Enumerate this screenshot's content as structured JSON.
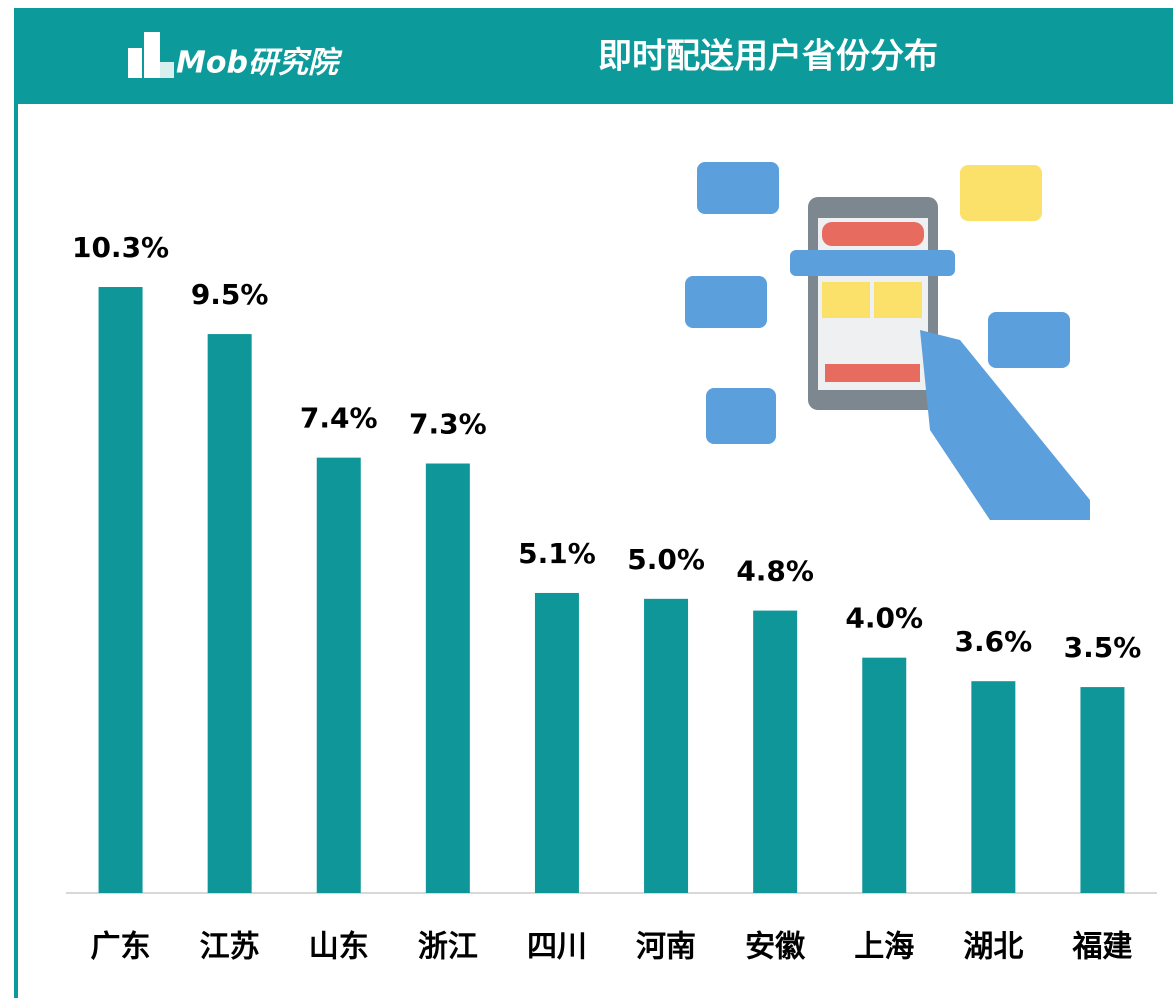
{
  "brand": "Mob研究院",
  "chart_data": {
    "type": "bar",
    "title": "即时配送用户省份分布",
    "categories": [
      "广东",
      "江苏",
      "山东",
      "浙江",
      "四川",
      "河南",
      "安徽",
      "上海",
      "湖北",
      "福建"
    ],
    "values": [
      10.3,
      9.5,
      7.4,
      7.3,
      5.1,
      5.0,
      4.8,
      4.0,
      3.6,
      3.5
    ],
    "value_labels": [
      "10.3%",
      "9.5%",
      "7.4%",
      "7.3%",
      "5.1%",
      "5.0%",
      "4.8%",
      "4.0%",
      "3.6%",
      "3.5%"
    ],
    "color": "#0e9699",
    "ylim": [
      0,
      12
    ],
    "grid": false
  }
}
